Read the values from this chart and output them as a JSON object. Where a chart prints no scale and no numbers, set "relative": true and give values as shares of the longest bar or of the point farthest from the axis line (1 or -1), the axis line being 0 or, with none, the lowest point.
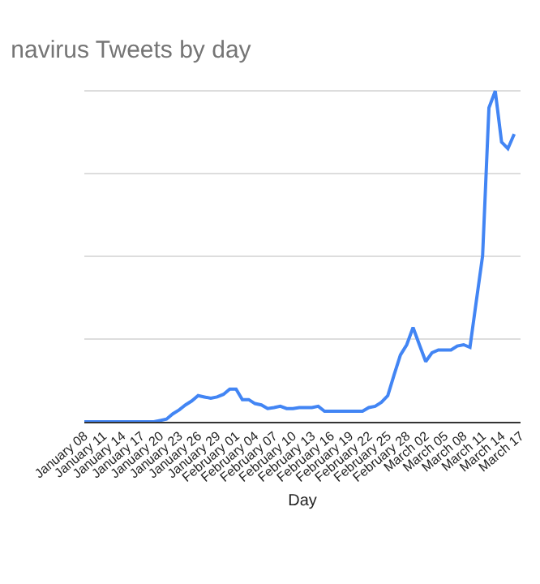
{
  "chart_data": {
    "type": "line",
    "title": "navirus Tweets by day",
    "xlabel": "Day",
    "relative": true,
    "grid": "y",
    "legend": false,
    "marker": "none",
    "line_style": "solid",
    "x": [
      "--01-08",
      "--01-09",
      "--01-10",
      "--01-11",
      "--01-12",
      "--01-13",
      "--01-14",
      "--01-15",
      "--01-16",
      "--01-17",
      "--01-18",
      "--01-19",
      "--01-20",
      "--01-21",
      "--01-22",
      "--01-23",
      "--01-24",
      "--01-25",
      "--01-26",
      "--01-27",
      "--01-28",
      "--01-29",
      "--01-30",
      "--01-31",
      "--02-01",
      "--02-02",
      "--02-03",
      "--02-04",
      "--02-05",
      "--02-06",
      "--02-07",
      "--02-08",
      "--02-09",
      "--02-10",
      "--02-11",
      "--02-12",
      "--02-13",
      "--02-14",
      "--02-15",
      "--02-16",
      "--02-17",
      "--02-18",
      "--02-19",
      "--02-20",
      "--02-21",
      "--02-22",
      "--02-23",
      "--02-24",
      "--02-25",
      "--02-26",
      "--02-27",
      "--02-28",
      "--02-29",
      "--03-01",
      "--03-02",
      "--03-03",
      "--03-04",
      "--03-05",
      "--03-06",
      "--03-07",
      "--03-08",
      "--03-09",
      "--03-10",
      "--03-11",
      "--03-12",
      "--03-13",
      "--03-14",
      "--03-15",
      "--03-16"
    ],
    "xlim": [
      "--01-08",
      "--03-17"
    ],
    "xticks": [
      {
        "value": "--01-08",
        "label": "January 08"
      },
      {
        "value": "--01-11",
        "label": "January 11"
      },
      {
        "value": "--01-14",
        "label": "January 14"
      },
      {
        "value": "--01-17",
        "label": "January 17"
      },
      {
        "value": "--01-20",
        "label": "January 20"
      },
      {
        "value": "--01-23",
        "label": "January 23"
      },
      {
        "value": "--01-26",
        "label": "January 26"
      },
      {
        "value": "--01-29",
        "label": "January 29"
      },
      {
        "value": "--02-01",
        "label": "February 01"
      },
      {
        "value": "--02-04",
        "label": "February 04"
      },
      {
        "value": "--02-07",
        "label": "February 07"
      },
      {
        "value": "--02-10",
        "label": "February 10"
      },
      {
        "value": "--02-13",
        "label": "February 13"
      },
      {
        "value": "--02-16",
        "label": "February 16"
      },
      {
        "value": "--02-19",
        "label": "February 19"
      },
      {
        "value": "--02-22",
        "label": "February 22"
      },
      {
        "value": "--02-25",
        "label": "February 25"
      },
      {
        "value": "--02-28",
        "label": "February 28"
      },
      {
        "value": "--03-02",
        "label": "March 02"
      },
      {
        "value": "--03-05",
        "label": "March 05"
      },
      {
        "value": "--03-08",
        "label": "March 08"
      },
      {
        "value": "--03-11",
        "label": "March 11"
      },
      {
        "value": "--03-14",
        "label": "March 14"
      },
      {
        "value": "--03-17",
        "label": "March 17"
      }
    ],
    "series": [
      {
        "color": "#4285f4",
        "values": [
          0,
          0,
          0,
          0,
          0,
          0,
          0,
          0,
          0,
          0,
          0,
          0,
          0.004,
          0.008,
          0.024,
          0.036,
          0.051,
          0.063,
          0.079,
          0.075,
          0.071,
          0.075,
          0.083,
          0.099,
          0.099,
          0.067,
          0.067,
          0.055,
          0.051,
          0.04,
          0.043,
          0.047,
          0.04,
          0.04,
          0.043,
          0.043,
          0.043,
          0.047,
          0.032,
          0.032,
          0.032,
          0.032,
          0.032,
          0.032,
          0.032,
          0.043,
          0.047,
          0.059,
          0.079,
          0.142,
          0.202,
          0.233,
          0.285,
          0.233,
          0.182,
          0.209,
          0.217,
          0.217,
          0.217,
          0.229,
          0.233,
          0.225,
          0.364,
          0.502,
          0.949,
          1,
          0.846,
          0.826,
          0.87
        ]
      }
    ]
  }
}
